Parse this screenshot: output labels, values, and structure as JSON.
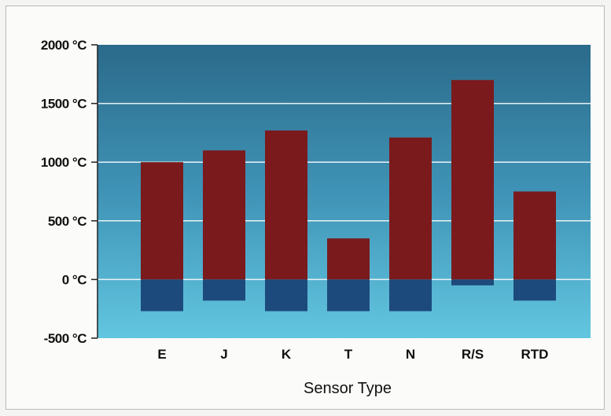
{
  "chart_data": {
    "type": "bar",
    "xlabel": "Sensor Type",
    "ylabel": "",
    "ylim": [
      -500,
      2000
    ],
    "yticks": [
      -500,
      0,
      500,
      1000,
      1500,
      2000
    ],
    "ytick_labels": [
      "-500 °C",
      "0 °C",
      "500 °C",
      "1000 °C",
      "1500 °C",
      "2000 °C"
    ],
    "grid": true,
    "categories": [
      "E",
      "J",
      "K",
      "T",
      "N",
      "R/S",
      "RTD"
    ],
    "ranges": [
      {
        "min": -270,
        "max": 1000
      },
      {
        "min": -180,
        "max": 1100
      },
      {
        "min": -270,
        "max": 1270
      },
      {
        "min": -270,
        "max": 350
      },
      {
        "min": -270,
        "max": 1210
      },
      {
        "min": -50,
        "max": 1700
      },
      {
        "min": -180,
        "max": 750
      }
    ],
    "colors": {
      "above_zero": "#7a1a1c",
      "below_zero": "#1d4a7c",
      "plot_top": "#2e6f8f",
      "plot_bottom": "#5cc0dc",
      "gridline": "#e8f3f6"
    }
  }
}
